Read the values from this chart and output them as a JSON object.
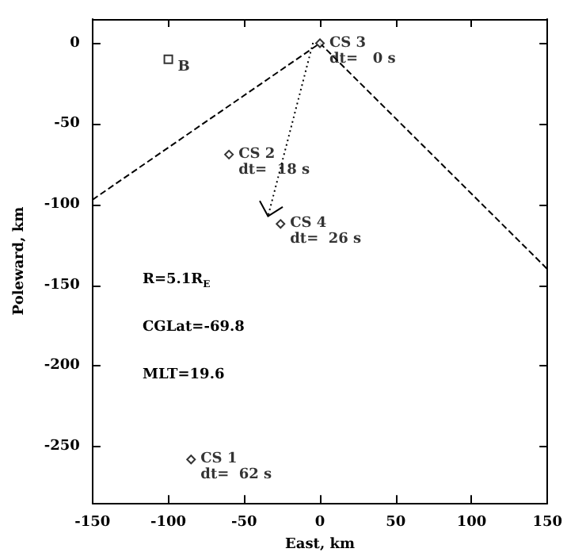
{
  "chart_data": {
    "type": "scatter",
    "xlabel": "East, km",
    "ylabel": "Poleward, km",
    "xlim": [
      -150,
      150
    ],
    "ylim": [
      -285,
      15
    ],
    "xticks": [
      -150,
      -100,
      -50,
      0,
      50,
      100,
      150
    ],
    "yticks": [
      -250,
      -200,
      -150,
      -100,
      -50,
      0
    ],
    "grid": false,
    "annotations": [
      "R=5.1R$_{E}$",
      "CGLat=-69.8",
      "MLT=19.6"
    ],
    "series": [
      {
        "type": "line",
        "color": "#000000",
        "line_style": "dashed",
        "marker": "none",
        "x": [
          -150,
          0,
          150
        ],
        "values": [
          -97,
          0,
          -140
        ]
      },
      {
        "color": "#000000",
        "marker": "diamond",
        "x": [
          0,
          -60,
          -26,
          -85
        ],
        "values": [
          0,
          -69,
          -112,
          -258
        ],
        "value_labels": [
          "CS 3\ndt=   0 s",
          "CS 2\ndt=  18 s",
          "CS 4\ndt=  26 s",
          "CS 1\ndt=  62 s"
        ]
      },
      {
        "color": "#000000",
        "marker": "square",
        "x": [
          -100
        ],
        "values": [
          -10
        ],
        "value_labels": [
          "B"
        ]
      }
    ]
  }
}
